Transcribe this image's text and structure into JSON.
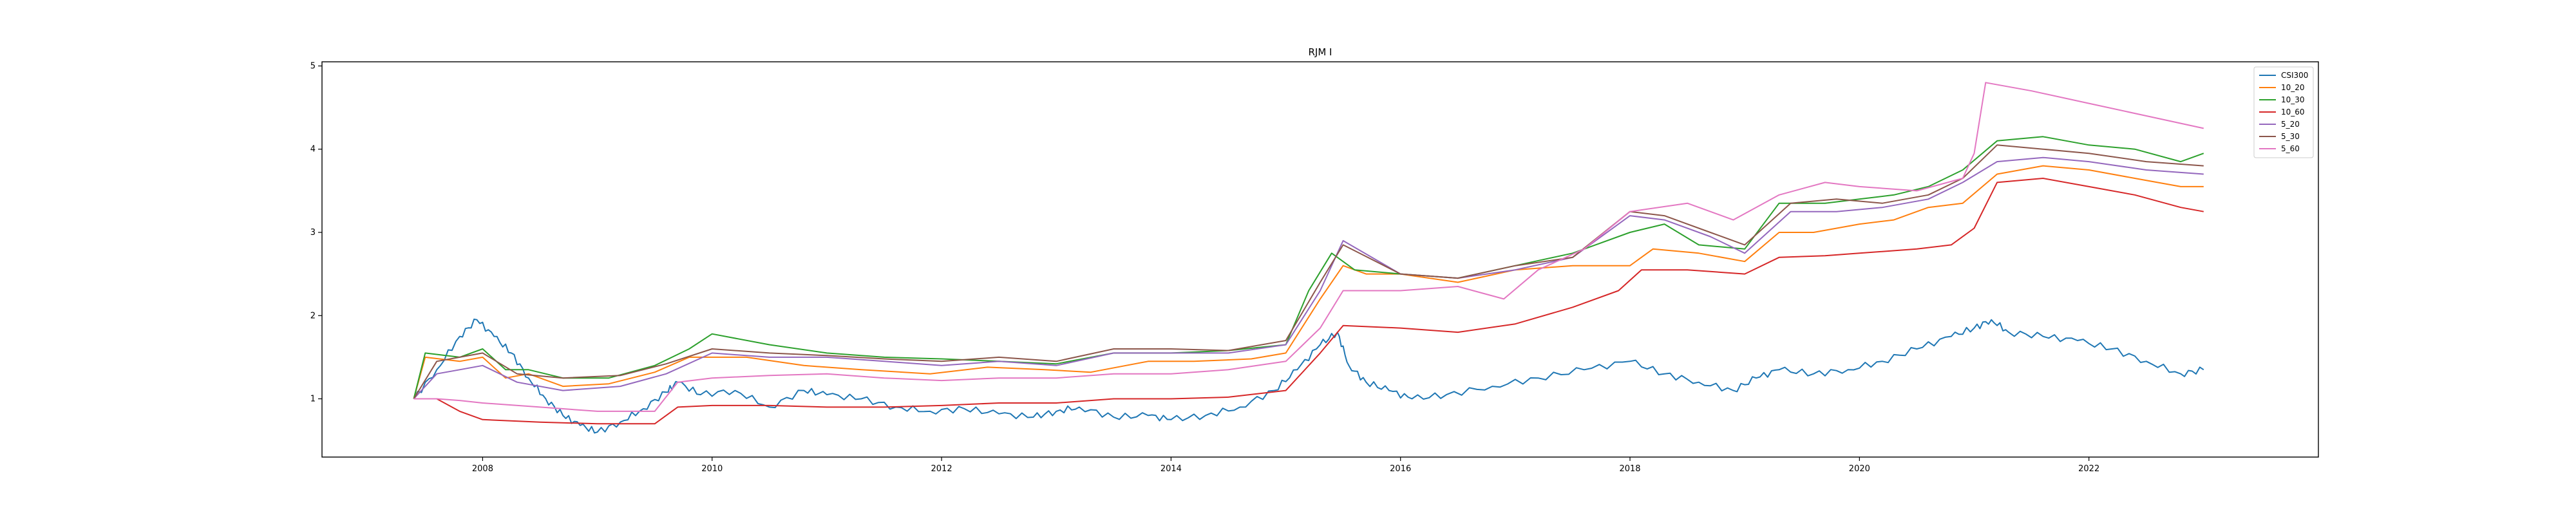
{
  "chart_data": {
    "type": "line",
    "title": "RJM I",
    "xlabel": "",
    "ylabel": "",
    "xlim": [
      2006.6,
      2024.0
    ],
    "ylim": [
      0.3,
      5.05
    ],
    "xticks": [
      2008,
      2010,
      2012,
      2014,
      2016,
      2018,
      2020,
      2022
    ],
    "xtick_labels": [
      "2008",
      "2010",
      "2012",
      "2014",
      "2016",
      "2018",
      "2020",
      "2022"
    ],
    "yticks": [
      1,
      2,
      3,
      4,
      5
    ],
    "ytick_labels": [
      "1",
      "2",
      "3",
      "4",
      "5"
    ],
    "grid": false,
    "legend_position": "top-right",
    "series": [
      {
        "name": "CSI300",
        "color": "#1f77b4",
        "x": [
          2007.4,
          2007.6,
          2007.8,
          2007.95,
          2008.1,
          2008.25,
          2008.4,
          2008.55,
          2008.7,
          2008.85,
          2009.0,
          2009.2,
          2009.4,
          2009.6,
          2009.7,
          2009.9,
          2010.2,
          2010.5,
          2010.8,
          2011.0,
          2011.3,
          2011.6,
          2011.9,
          2012.2,
          2012.5,
          2012.8,
          2013.0,
          2013.2,
          2013.5,
          2013.8,
          2014.0,
          2014.3,
          2014.6,
          2014.9,
          2015.1,
          2015.3,
          2015.45,
          2015.55,
          2015.7,
          2015.9,
          2016.1,
          2016.4,
          2016.8,
          2017.2,
          2017.6,
          2018.0,
          2018.3,
          2018.6,
          2018.9,
          2019.1,
          2019.3,
          2019.6,
          2019.9,
          2020.2,
          2020.5,
          2020.8,
          2021.0,
          2021.15,
          2021.3,
          2021.6,
          2021.9,
          2022.2,
          2022.5,
          2022.8,
          2023.0
        ],
        "y": [
          1.0,
          1.35,
          1.75,
          1.95,
          1.75,
          1.55,
          1.25,
          1.0,
          0.8,
          0.68,
          0.6,
          0.72,
          0.88,
          1.08,
          1.2,
          1.05,
          1.1,
          0.9,
          1.1,
          1.05,
          1.0,
          0.9,
          0.85,
          0.88,
          0.82,
          0.78,
          0.85,
          0.9,
          0.78,
          0.8,
          0.75,
          0.8,
          0.9,
          1.1,
          1.35,
          1.65,
          1.8,
          1.4,
          1.2,
          1.1,
          1.0,
          1.05,
          1.15,
          1.25,
          1.35,
          1.45,
          1.3,
          1.2,
          1.1,
          1.25,
          1.35,
          1.3,
          1.35,
          1.45,
          1.6,
          1.75,
          1.85,
          1.95,
          1.8,
          1.75,
          1.7,
          1.6,
          1.45,
          1.3,
          1.35
        ]
      },
      {
        "name": "10_20",
        "color": "#ff7f0e",
        "x": [
          2007.4,
          2007.5,
          2007.8,
          2008.0,
          2008.2,
          2008.4,
          2008.7,
          2009.1,
          2009.5,
          2009.8,
          2010.3,
          2010.8,
          2011.3,
          2011.9,
          2012.4,
          2012.9,
          2013.3,
          2013.8,
          2014.2,
          2014.7,
          2015.0,
          2015.3,
          2015.5,
          2015.7,
          2016.0,
          2016.5,
          2017.0,
          2017.5,
          2018.0,
          2018.2,
          2018.6,
          2019.0,
          2019.3,
          2019.6,
          2020.0,
          2020.3,
          2020.6,
          2020.9,
          2021.2,
          2021.6,
          2022.0,
          2022.4,
          2022.8,
          2023.0
        ],
        "y": [
          1.0,
          1.5,
          1.45,
          1.5,
          1.25,
          1.3,
          1.15,
          1.18,
          1.32,
          1.5,
          1.5,
          1.4,
          1.35,
          1.3,
          1.38,
          1.35,
          1.32,
          1.45,
          1.45,
          1.48,
          1.55,
          2.2,
          2.6,
          2.5,
          2.5,
          2.4,
          2.55,
          2.6,
          2.6,
          2.8,
          2.75,
          2.65,
          3.0,
          3.0,
          3.1,
          3.15,
          3.3,
          3.35,
          3.7,
          3.8,
          3.75,
          3.65,
          3.55,
          3.55
        ]
      },
      {
        "name": "10_30",
        "color": "#2ca02c",
        "x": [
          2007.4,
          2007.5,
          2007.8,
          2008.0,
          2008.2,
          2008.4,
          2008.7,
          2009.1,
          2009.5,
          2009.8,
          2010.0,
          2010.5,
          2011.0,
          2011.5,
          2012.0,
          2012.5,
          2013.0,
          2013.5,
          2014.0,
          2014.5,
          2015.0,
          2015.2,
          2015.4,
          2015.6,
          2016.0,
          2016.5,
          2017.0,
          2017.5,
          2018.0,
          2018.3,
          2018.6,
          2019.0,
          2019.3,
          2019.7,
          2020.0,
          2020.3,
          2020.6,
          2020.9,
          2021.2,
          2021.6,
          2022.0,
          2022.4,
          2022.8,
          2023.0
        ],
        "y": [
          1.0,
          1.55,
          1.5,
          1.6,
          1.35,
          1.35,
          1.25,
          1.25,
          1.4,
          1.6,
          1.78,
          1.65,
          1.55,
          1.5,
          1.48,
          1.45,
          1.42,
          1.55,
          1.55,
          1.58,
          1.65,
          2.3,
          2.75,
          2.55,
          2.5,
          2.45,
          2.6,
          2.75,
          3.0,
          3.1,
          2.85,
          2.8,
          3.35,
          3.35,
          3.4,
          3.45,
          3.55,
          3.75,
          4.1,
          4.15,
          4.05,
          4.0,
          3.85,
          3.95
        ]
      },
      {
        "name": "10_60",
        "color": "#d62728",
        "x": [
          2007.4,
          2007.6,
          2007.8,
          2008.0,
          2008.5,
          2009.0,
          2009.5,
          2009.7,
          2010.0,
          2010.5,
          2011.0,
          2011.5,
          2012.0,
          2012.5,
          2013.0,
          2013.5,
          2014.0,
          2014.5,
          2015.0,
          2015.3,
          2015.5,
          2016.0,
          2016.5,
          2017.0,
          2017.5,
          2017.9,
          2018.1,
          2018.5,
          2019.0,
          2019.3,
          2019.7,
          2020.0,
          2020.5,
          2020.8,
          2021.0,
          2021.2,
          2021.6,
          2022.0,
          2022.4,
          2022.8,
          2023.0
        ],
        "y": [
          1.0,
          1.0,
          0.85,
          0.75,
          0.72,
          0.7,
          0.7,
          0.9,
          0.92,
          0.92,
          0.9,
          0.9,
          0.92,
          0.95,
          0.95,
          1.0,
          1.0,
          1.02,
          1.1,
          1.55,
          1.88,
          1.85,
          1.8,
          1.9,
          2.1,
          2.3,
          2.55,
          2.55,
          2.5,
          2.7,
          2.72,
          2.75,
          2.8,
          2.85,
          3.05,
          3.6,
          3.65,
          3.55,
          3.45,
          3.3,
          3.25
        ]
      },
      {
        "name": "5_20",
        "color": "#9467bd",
        "x": [
          2007.4,
          2007.6,
          2007.8,
          2008.0,
          2008.3,
          2008.7,
          2009.2,
          2009.6,
          2010.0,
          2010.5,
          2011.0,
          2011.5,
          2012.0,
          2012.5,
          2013.0,
          2013.5,
          2014.0,
          2014.5,
          2015.0,
          2015.3,
          2015.5,
          2016.0,
          2016.5,
          2017.0,
          2017.5,
          2018.0,
          2018.3,
          2018.7,
          2019.0,
          2019.4,
          2019.8,
          2020.2,
          2020.6,
          2020.9,
          2021.2,
          2021.6,
          2022.0,
          2022.5,
          2023.0
        ],
        "y": [
          1.0,
          1.3,
          1.35,
          1.4,
          1.2,
          1.1,
          1.15,
          1.3,
          1.55,
          1.5,
          1.5,
          1.45,
          1.4,
          1.45,
          1.4,
          1.55,
          1.55,
          1.55,
          1.65,
          2.3,
          2.9,
          2.5,
          2.45,
          2.55,
          2.7,
          3.2,
          3.15,
          2.95,
          2.75,
          3.25,
          3.25,
          3.3,
          3.4,
          3.6,
          3.85,
          3.9,
          3.85,
          3.75,
          3.7
        ]
      },
      {
        "name": "5_30",
        "color": "#8c564b",
        "x": [
          2007.4,
          2007.6,
          2007.8,
          2008.0,
          2008.3,
          2008.7,
          2009.2,
          2009.6,
          2010.0,
          2010.5,
          2011.0,
          2011.5,
          2012.0,
          2012.5,
          2013.0,
          2013.5,
          2014.0,
          2014.5,
          2015.0,
          2015.3,
          2015.5,
          2016.0,
          2016.5,
          2017.0,
          2017.5,
          2018.0,
          2018.3,
          2018.7,
          2019.0,
          2019.4,
          2019.8,
          2020.2,
          2020.6,
          2020.9,
          2021.2,
          2021.6,
          2022.0,
          2022.5,
          2023.0
        ],
        "y": [
          1.0,
          1.45,
          1.5,
          1.55,
          1.3,
          1.25,
          1.28,
          1.42,
          1.6,
          1.55,
          1.52,
          1.48,
          1.45,
          1.5,
          1.45,
          1.6,
          1.6,
          1.58,
          1.7,
          2.4,
          2.85,
          2.5,
          2.45,
          2.6,
          2.7,
          3.25,
          3.2,
          3.0,
          2.85,
          3.35,
          3.4,
          3.35,
          3.45,
          3.65,
          4.05,
          4.0,
          3.95,
          3.85,
          3.8
        ]
      },
      {
        "name": "5_60",
        "color": "#e377c2",
        "x": [
          2007.4,
          2007.6,
          2007.8,
          2008.0,
          2008.5,
          2009.0,
          2009.5,
          2009.7,
          2010.0,
          2010.5,
          2011.0,
          2011.5,
          2012.0,
          2012.5,
          2013.0,
          2013.5,
          2014.0,
          2014.5,
          2015.0,
          2015.3,
          2015.5,
          2016.0,
          2016.5,
          2016.9,
          2017.2,
          2017.6,
          2018.0,
          2018.5,
          2018.9,
          2019.3,
          2019.7,
          2020.0,
          2020.5,
          2020.9,
          2021.0,
          2021.1,
          2021.5,
          2022.0,
          2022.5,
          2023.0
        ],
        "y": [
          1.0,
          1.0,
          0.98,
          0.95,
          0.9,
          0.85,
          0.85,
          1.2,
          1.25,
          1.28,
          1.3,
          1.25,
          1.22,
          1.25,
          1.25,
          1.3,
          1.3,
          1.35,
          1.45,
          1.85,
          2.3,
          2.3,
          2.35,
          2.2,
          2.55,
          2.8,
          3.25,
          3.35,
          3.15,
          3.45,
          3.6,
          3.55,
          3.5,
          3.65,
          3.95,
          4.8,
          4.7,
          4.55,
          4.4,
          4.25
        ]
      }
    ]
  }
}
